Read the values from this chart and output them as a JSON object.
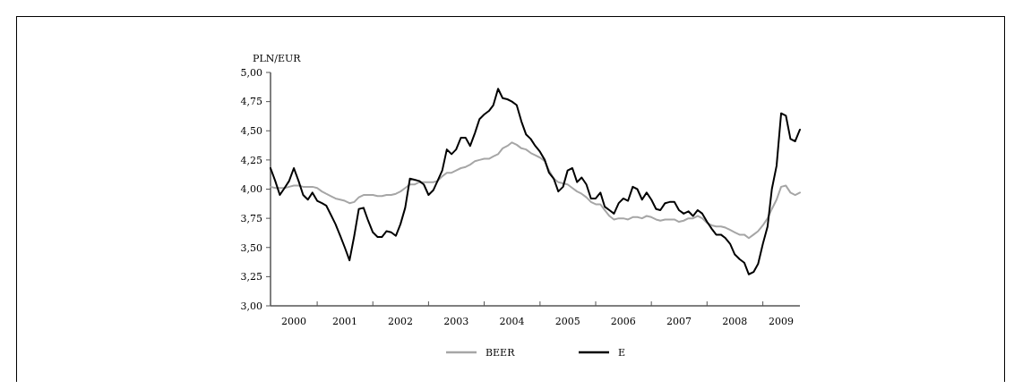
{
  "chart_data": {
    "type": "line",
    "ylabel": "PLN/EUR",
    "legend": "bottom",
    "line_style": "solid",
    "marker": "none",
    "x": [
      "2000-03",
      "2000-04",
      "2000-05",
      "2000-06",
      "2000-07",
      "2000-08",
      "2000-09",
      "2000-10",
      "2000-11",
      "2000-12",
      "2001-01",
      "2001-02",
      "2001-03",
      "2001-04",
      "2001-05",
      "2001-06",
      "2001-07",
      "2001-08",
      "2001-09",
      "2001-10",
      "2001-11",
      "2001-12",
      "2002-01",
      "2002-02",
      "2002-03",
      "2002-04",
      "2002-05",
      "2002-06",
      "2002-07",
      "2002-08",
      "2002-09",
      "2002-10",
      "2002-11",
      "2002-12",
      "2003-01",
      "2003-02",
      "2003-03",
      "2003-04",
      "2003-05",
      "2003-06",
      "2003-07",
      "2003-08",
      "2003-09",
      "2003-10",
      "2003-11",
      "2003-12",
      "2004-01",
      "2004-02",
      "2004-03",
      "2004-04",
      "2004-05",
      "2004-06",
      "2004-07",
      "2004-08",
      "2004-09",
      "2004-10",
      "2004-11",
      "2004-12",
      "2005-01",
      "2005-02",
      "2005-03",
      "2005-04",
      "2005-05",
      "2005-06",
      "2005-07",
      "2005-08",
      "2005-09",
      "2005-10",
      "2005-11",
      "2005-12",
      "2006-01",
      "2006-02",
      "2006-03",
      "2006-04",
      "2006-05",
      "2006-06",
      "2006-07",
      "2006-08",
      "2006-09",
      "2006-10",
      "2006-11",
      "2006-12",
      "2007-01",
      "2007-02",
      "2007-03",
      "2007-04",
      "2007-05",
      "2007-06",
      "2007-07",
      "2007-08",
      "2007-09",
      "2007-10",
      "2007-11",
      "2007-12",
      "2008-01",
      "2008-02",
      "2008-03",
      "2008-04",
      "2008-05",
      "2008-06",
      "2008-07",
      "2008-08",
      "2008-09",
      "2008-10",
      "2008-11",
      "2008-12",
      "2009-01",
      "2009-02",
      "2009-03",
      "2009-04",
      "2009-05",
      "2009-06",
      "2009-07",
      "2009-08",
      "2009-09"
    ],
    "xlim": [
      "2000-03",
      "2009-09"
    ],
    "xticks": [
      {
        "value": "2001-01",
        "label": null
      },
      {
        "value": "2002-01",
        "label": null
      },
      {
        "value": "2003-01",
        "label": null
      },
      {
        "value": "2004-01",
        "label": null
      },
      {
        "value": "2005-01",
        "label": null
      },
      {
        "value": "2006-01",
        "label": null
      },
      {
        "value": "2007-01",
        "label": null
      },
      {
        "value": "2008-01",
        "label": null
      },
      {
        "value": "2009-01",
        "label": null
      },
      {
        "value": "2000-08-01",
        "label": "2000"
      },
      {
        "value": "2001-07-01",
        "label": "2001"
      },
      {
        "value": "2002-07-01",
        "label": "2002"
      },
      {
        "value": "2003-07-01",
        "label": "2003"
      },
      {
        "value": "2004-07-01",
        "label": "2004"
      },
      {
        "value": "2005-07-01",
        "label": "2005"
      },
      {
        "value": "2006-07-01",
        "label": "2006"
      },
      {
        "value": "2007-07-01",
        "label": "2007"
      },
      {
        "value": "2008-07-01",
        "label": "2008"
      },
      {
        "value": "2009-05-01",
        "label": "2009"
      }
    ],
    "ylim": [
      3,
      5
    ],
    "yticks": [
      {
        "value": 3,
        "label": "3,00"
      },
      {
        "value": 3.25,
        "label": "3,25"
      },
      {
        "value": 3.5,
        "label": "3,50"
      },
      {
        "value": 3.75,
        "label": "3,75"
      },
      {
        "value": 4,
        "label": "4,00"
      },
      {
        "value": 4.25,
        "label": "4,25"
      },
      {
        "value": 4.5,
        "label": "4,50"
      },
      {
        "value": 4.75,
        "label": "4,75"
      },
      {
        "value": 5,
        "label": "5,00"
      }
    ],
    "series": [
      {
        "name": "BEER",
        "color": "#a6a6a6",
        "values": [
          4.02,
          4.01,
          4.01,
          4.01,
          4.02,
          4.03,
          4.03,
          4.02,
          4.02,
          4.02,
          4.01,
          3.98,
          3.96,
          3.94,
          3.92,
          3.91,
          3.9,
          3.88,
          3.89,
          3.93,
          3.95,
          3.95,
          3.95,
          3.94,
          3.94,
          3.95,
          3.95,
          3.96,
          3.98,
          4.01,
          4.04,
          4.04,
          4.06,
          4.06,
          4.06,
          4.06,
          4.07,
          4.11,
          4.14,
          4.14,
          4.16,
          4.18,
          4.19,
          4.21,
          4.24,
          4.25,
          4.26,
          4.26,
          4.28,
          4.3,
          4.35,
          4.37,
          4.4,
          4.38,
          4.35,
          4.34,
          4.31,
          4.29,
          4.27,
          4.24,
          4.16,
          4.09,
          4.06,
          4.05,
          4.04,
          4.01,
          3.98,
          3.96,
          3.93,
          3.89,
          3.87,
          3.87,
          3.82,
          3.77,
          3.74,
          3.75,
          3.75,
          3.74,
          3.76,
          3.76,
          3.75,
          3.77,
          3.76,
          3.74,
          3.73,
          3.74,
          3.74,
          3.74,
          3.72,
          3.73,
          3.75,
          3.75,
          3.77,
          3.75,
          3.71,
          3.69,
          3.68,
          3.68,
          3.67,
          3.65,
          3.63,
          3.61,
          3.61,
          3.58,
          3.61,
          3.64,
          3.69,
          3.75,
          3.83,
          3.91,
          4.02,
          4.03,
          3.97,
          3.95,
          3.97
        ]
      },
      {
        "name": "E",
        "color": "#000000",
        "values": [
          4.18,
          4.07,
          3.95,
          4.01,
          4.07,
          4.18,
          4.07,
          3.95,
          3.91,
          3.97,
          3.9,
          3.88,
          3.86,
          3.78,
          3.7,
          3.6,
          3.5,
          3.39,
          3.6,
          3.83,
          3.84,
          3.73,
          3.63,
          3.59,
          3.59,
          3.64,
          3.63,
          3.6,
          3.7,
          3.84,
          4.09,
          4.08,
          4.07,
          4.04,
          3.95,
          3.99,
          4.07,
          4.16,
          4.34,
          4.3,
          4.34,
          4.44,
          4.44,
          4.37,
          4.48,
          4.6,
          4.64,
          4.67,
          4.72,
          4.86,
          4.78,
          4.77,
          4.75,
          4.72,
          4.58,
          4.47,
          4.43,
          4.37,
          4.32,
          4.25,
          4.14,
          4.09,
          3.98,
          4.02,
          4.16,
          4.18,
          4.06,
          4.1,
          4.04,
          3.92,
          3.92,
          3.97,
          3.85,
          3.82,
          3.79,
          3.88,
          3.92,
          3.9,
          4.02,
          4.0,
          3.91,
          3.97,
          3.91,
          3.83,
          3.82,
          3.88,
          3.89,
          3.89,
          3.82,
          3.79,
          3.81,
          3.77,
          3.82,
          3.79,
          3.72,
          3.66,
          3.61,
          3.61,
          3.58,
          3.53,
          3.44,
          3.4,
          3.37,
          3.27,
          3.29,
          3.36,
          3.53,
          3.68,
          4.0,
          4.2,
          4.65,
          4.63,
          4.43,
          4.41,
          4.51
        ]
      }
    ]
  }
}
